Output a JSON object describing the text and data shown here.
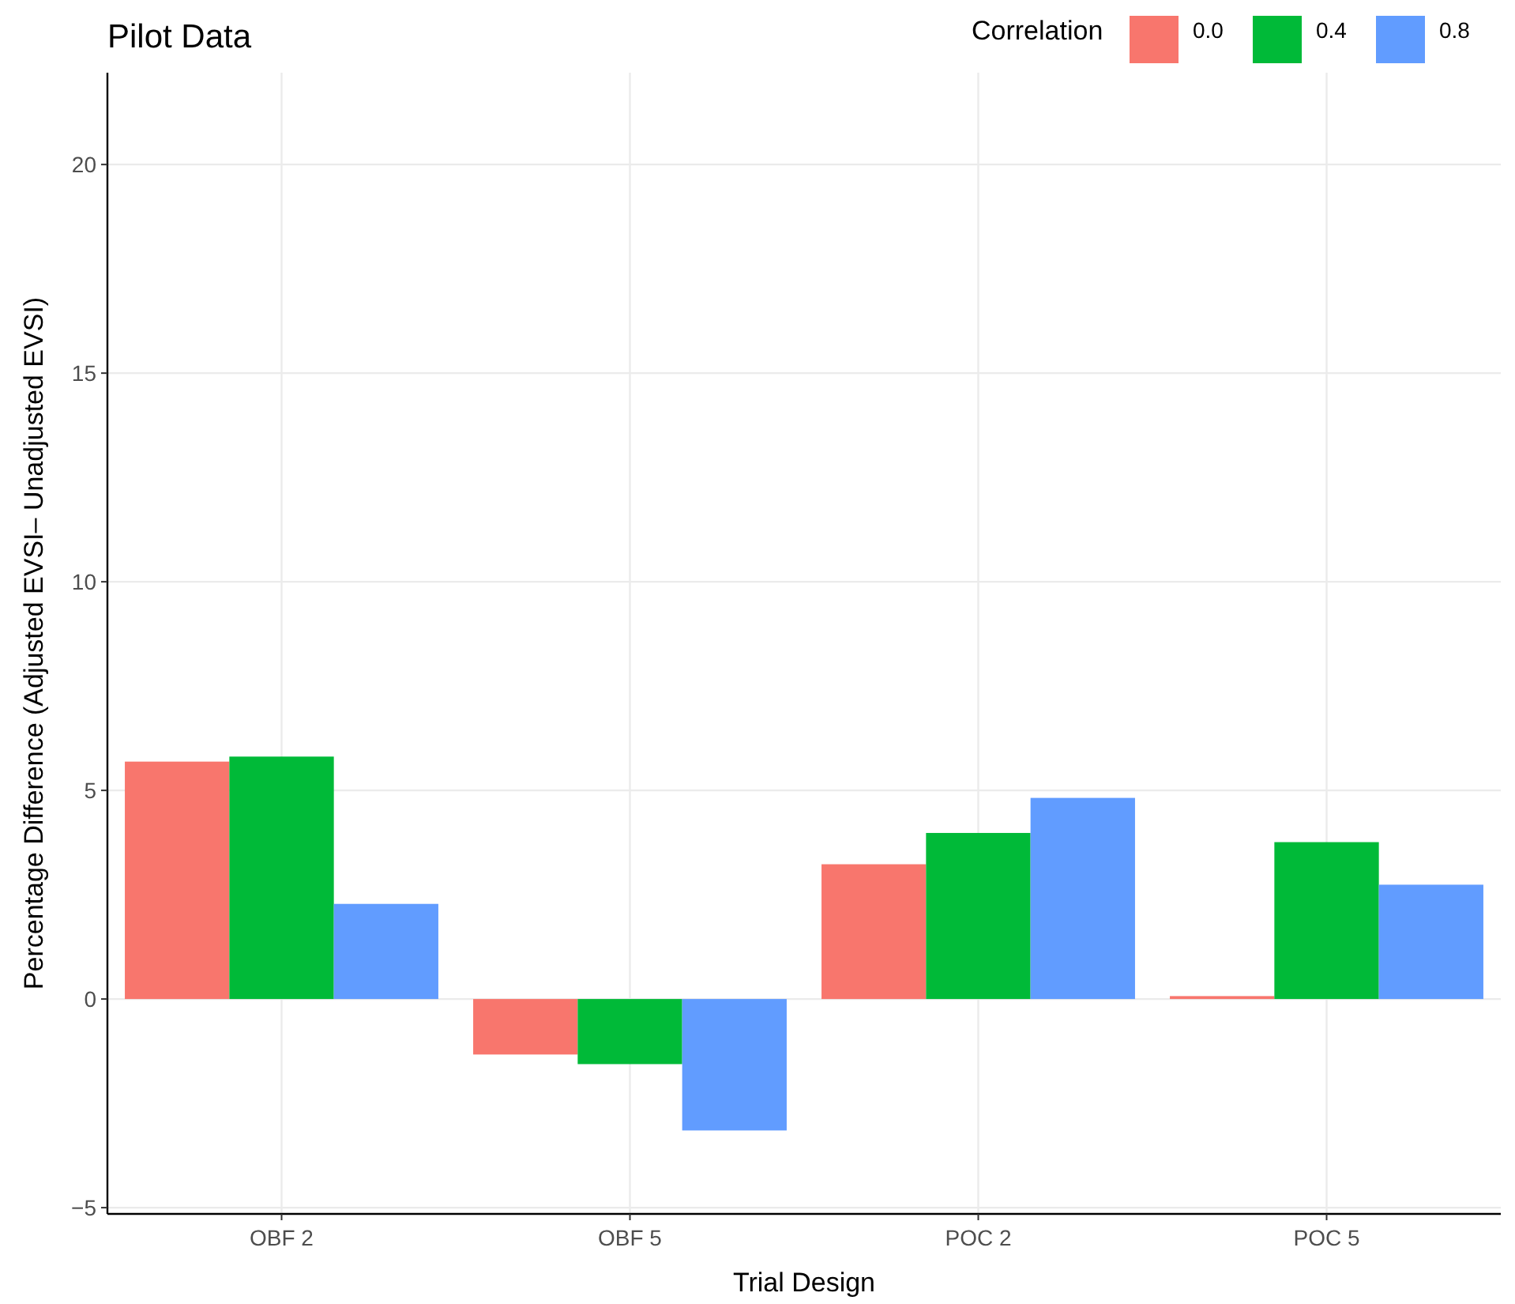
{
  "chart_data": {
    "type": "bar",
    "title": "Pilot Data",
    "xlabel": "Trial Design",
    "ylabel": "Percentage Difference (Adjusted EVSI– Unadjusted EVSI)",
    "legend_title": "Correlation",
    "categories": [
      "OBF 2",
      "OBF 5",
      "POC 2",
      "POC 5"
    ],
    "series": [
      {
        "name": "0.0",
        "color": "#f8766d",
        "values": [
          5.69,
          -1.33,
          3.23,
          0.07
        ]
      },
      {
        "name": "0.4",
        "color": "#00ba38",
        "values": [
          5.81,
          -1.56,
          3.98,
          3.76
        ]
      },
      {
        "name": "0.8",
        "color": "#619cff",
        "values": [
          2.28,
          -3.15,
          4.82,
          2.74
        ]
      }
    ],
    "ylim": [
      -5.15,
      22.2
    ],
    "yticks": [
      {
        "value": -5,
        "label": "−5"
      },
      0,
      5,
      10,
      15,
      20
    ],
    "grid": true,
    "legend": "top right"
  }
}
